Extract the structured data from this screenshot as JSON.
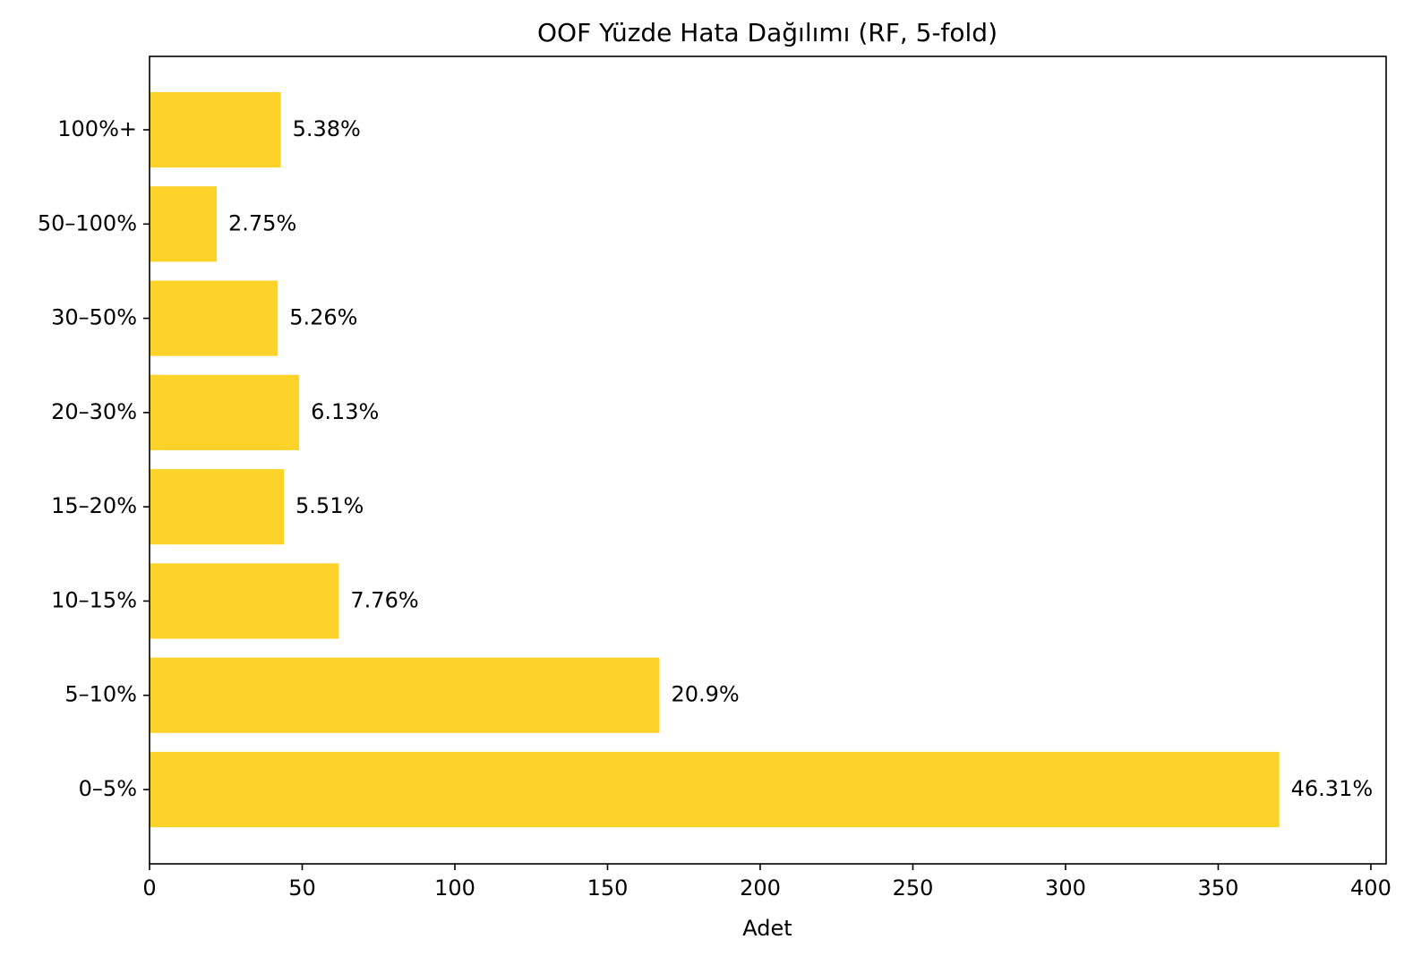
{
  "chart_data": {
    "type": "bar",
    "orientation": "horizontal",
    "title": "OOF Yüzde Hata Dağılımı (RF, 5-fold)",
    "xlabel": "Adet",
    "ylabel": "",
    "categories": [
      "0–5%",
      "5–10%",
      "10–15%",
      "15–20%",
      "20–30%",
      "30–50%",
      "50–100%",
      "100%+"
    ],
    "values": [
      370,
      167,
      62,
      44,
      49,
      42,
      22,
      43
    ],
    "data_labels": [
      "46.31%",
      "20.9%",
      "7.76%",
      "5.51%",
      "6.13%",
      "5.26%",
      "2.75%",
      "5.38%"
    ],
    "xlim": [
      0,
      405
    ],
    "xticks": [
      0,
      50,
      100,
      150,
      200,
      250,
      300,
      350,
      400
    ],
    "bar_color": "#FDD32A",
    "grid": false
  }
}
